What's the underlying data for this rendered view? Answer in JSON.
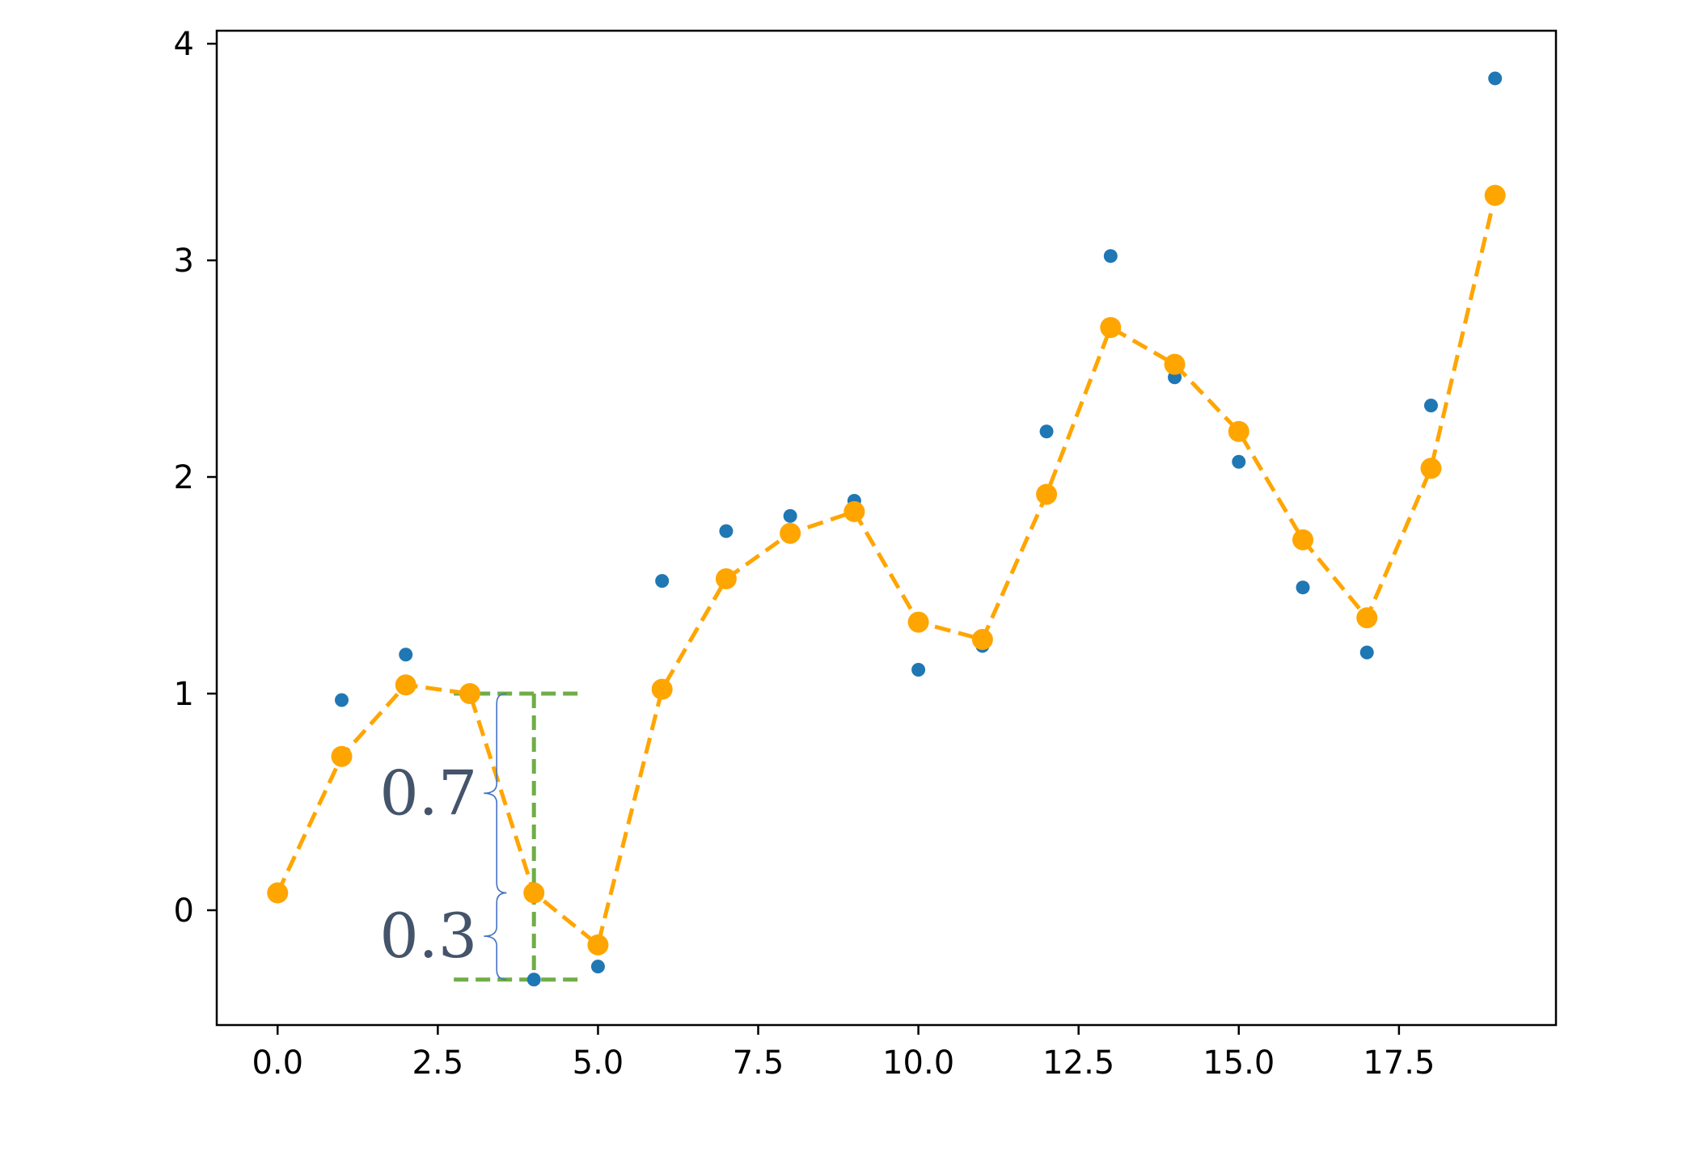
{
  "chart_data": {
    "type": "line",
    "title": "",
    "xlabel": "",
    "ylabel": "",
    "xlim": [
      -0.95,
      19.95
    ],
    "ylim": [
      -0.53,
      4.06
    ],
    "x_ticks": [
      0.0,
      2.5,
      5.0,
      7.5,
      10.0,
      12.5,
      15.0,
      17.5
    ],
    "x_tick_labels": [
      "0.0",
      "2.5",
      "5.0",
      "7.5",
      "10.0",
      "12.5",
      "15.0",
      "17.5"
    ],
    "y_ticks": [
      0,
      1,
      2,
      3,
      4
    ],
    "y_tick_labels": [
      "0",
      "1",
      "2",
      "3",
      "4"
    ],
    "grid": false,
    "legend": "none",
    "series": [
      {
        "kind": "scatter",
        "color": "#1f77b4",
        "x": [
          0,
          1,
          2,
          3,
          4,
          5,
          6,
          7,
          8,
          9,
          10,
          11,
          12,
          13,
          14,
          15,
          16,
          17,
          18,
          19
        ],
        "values": [
          0.08,
          0.97,
          1.18,
          1.0,
          -0.32,
          -0.26,
          1.52,
          1.75,
          1.82,
          1.89,
          1.11,
          1.22,
          2.21,
          3.02,
          2.46,
          2.07,
          1.49,
          1.19,
          2.33,
          3.84
        ]
      },
      {
        "kind": "line",
        "style": "dashed",
        "marker": "circle",
        "color": "#ffa500",
        "x": [
          0,
          1,
          2,
          3,
          4,
          5,
          6,
          7,
          8,
          9,
          10,
          11,
          12,
          13,
          14,
          15,
          16,
          17,
          18,
          19
        ],
        "values": [
          0.08,
          0.71,
          1.04,
          1.0,
          0.08,
          -0.16,
          1.02,
          1.53,
          1.74,
          1.84,
          1.33,
          1.25,
          1.92,
          2.69,
          2.52,
          2.21,
          1.71,
          1.35,
          2.04,
          3.3
        ]
      }
    ],
    "annotations": {
      "color": "#70ad47",
      "brace_color": "#4472c4",
      "label_color": "#44546a",
      "guide_x": 4,
      "guide_x_range": [
        2.75,
        4.75
      ],
      "top_y": 1.0,
      "mid_y": 0.08,
      "bottom_y": -0.32,
      "upper_label": "0.7",
      "lower_label": "0.3"
    }
  }
}
